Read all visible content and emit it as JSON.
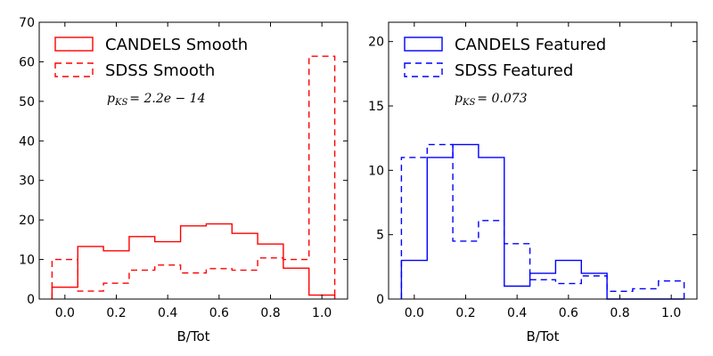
{
  "chart_data": [
    {
      "type": "histogram",
      "xlabel": "B/Tot",
      "ylabel": "",
      "xlim": [
        -0.1,
        1.1
      ],
      "ylim": [
        0,
        70
      ],
      "xticks": [
        0.0,
        0.2,
        0.4,
        0.6,
        0.8,
        1.0
      ],
      "xtick_labels": [
        "0.0",
        "0.2",
        "0.4",
        "0.6",
        "0.8",
        "1.0"
      ],
      "yticks": [
        0,
        10,
        20,
        30,
        40,
        50,
        60,
        70
      ],
      "ytick_labels": [
        "0",
        "10",
        "20",
        "30",
        "40",
        "50",
        "60",
        "70"
      ],
      "bin_edges": [
        -0.05,
        0.05,
        0.15,
        0.25,
        0.35,
        0.45,
        0.55,
        0.65,
        0.75,
        0.85,
        0.95,
        1.05
      ],
      "series": [
        {
          "name": "CANDELS Smooth",
          "style": "solid",
          "color": "#ff0000",
          "values": [
            3.0,
            13.3,
            12.2,
            15.8,
            14.5,
            18.5,
            19.0,
            16.6,
            13.9,
            7.8,
            1.0
          ]
        },
        {
          "name": "SDSS Smooth",
          "style": "dashed",
          "color": "#ff0000",
          "values": [
            10.0,
            2.0,
            4.0,
            7.3,
            8.6,
            6.6,
            7.7,
            7.3,
            10.4,
            10.0,
            61.4
          ]
        }
      ],
      "annotation": "p_{KS} = 2.2e-14",
      "annotation_main": "p",
      "annotation_sub": "KS",
      "annotation_rest": "= 2.2e − 14",
      "legend_location": "upper-left"
    },
    {
      "type": "histogram",
      "xlabel": "B/Tot",
      "ylabel": "",
      "xlim": [
        -0.1,
        1.1
      ],
      "ylim": [
        0,
        21.5
      ],
      "xticks": [
        0.0,
        0.2,
        0.4,
        0.6,
        0.8,
        1.0
      ],
      "xtick_labels": [
        "0.0",
        "0.2",
        "0.4",
        "0.6",
        "0.8",
        "1.0"
      ],
      "yticks": [
        0,
        5,
        10,
        15,
        20
      ],
      "ytick_labels": [
        "0",
        "5",
        "10",
        "15",
        "20"
      ],
      "bin_edges": [
        -0.05,
        0.05,
        0.15,
        0.25,
        0.35,
        0.45,
        0.55,
        0.65,
        0.75,
        0.85,
        0.95,
        1.05
      ],
      "series": [
        {
          "name": "CANDELS Featured",
          "style": "solid",
          "color": "#0000ff",
          "values": [
            3.0,
            11.0,
            12.0,
            11.0,
            1.0,
            2.0,
            3.0,
            2.0,
            0.0,
            0.0,
            0.0
          ]
        },
        {
          "name": "SDSS Featured",
          "style": "dashed",
          "color": "#0000ff",
          "values": [
            11.0,
            12.0,
            4.5,
            6.1,
            4.3,
            1.5,
            1.2,
            1.8,
            0.6,
            0.8,
            1.4
          ]
        }
      ],
      "annotation": "p_{KS} = 0.073",
      "annotation_main": "p",
      "annotation_sub": "KS",
      "annotation_rest": "= 0.073",
      "legend_location": "upper-left"
    }
  ]
}
